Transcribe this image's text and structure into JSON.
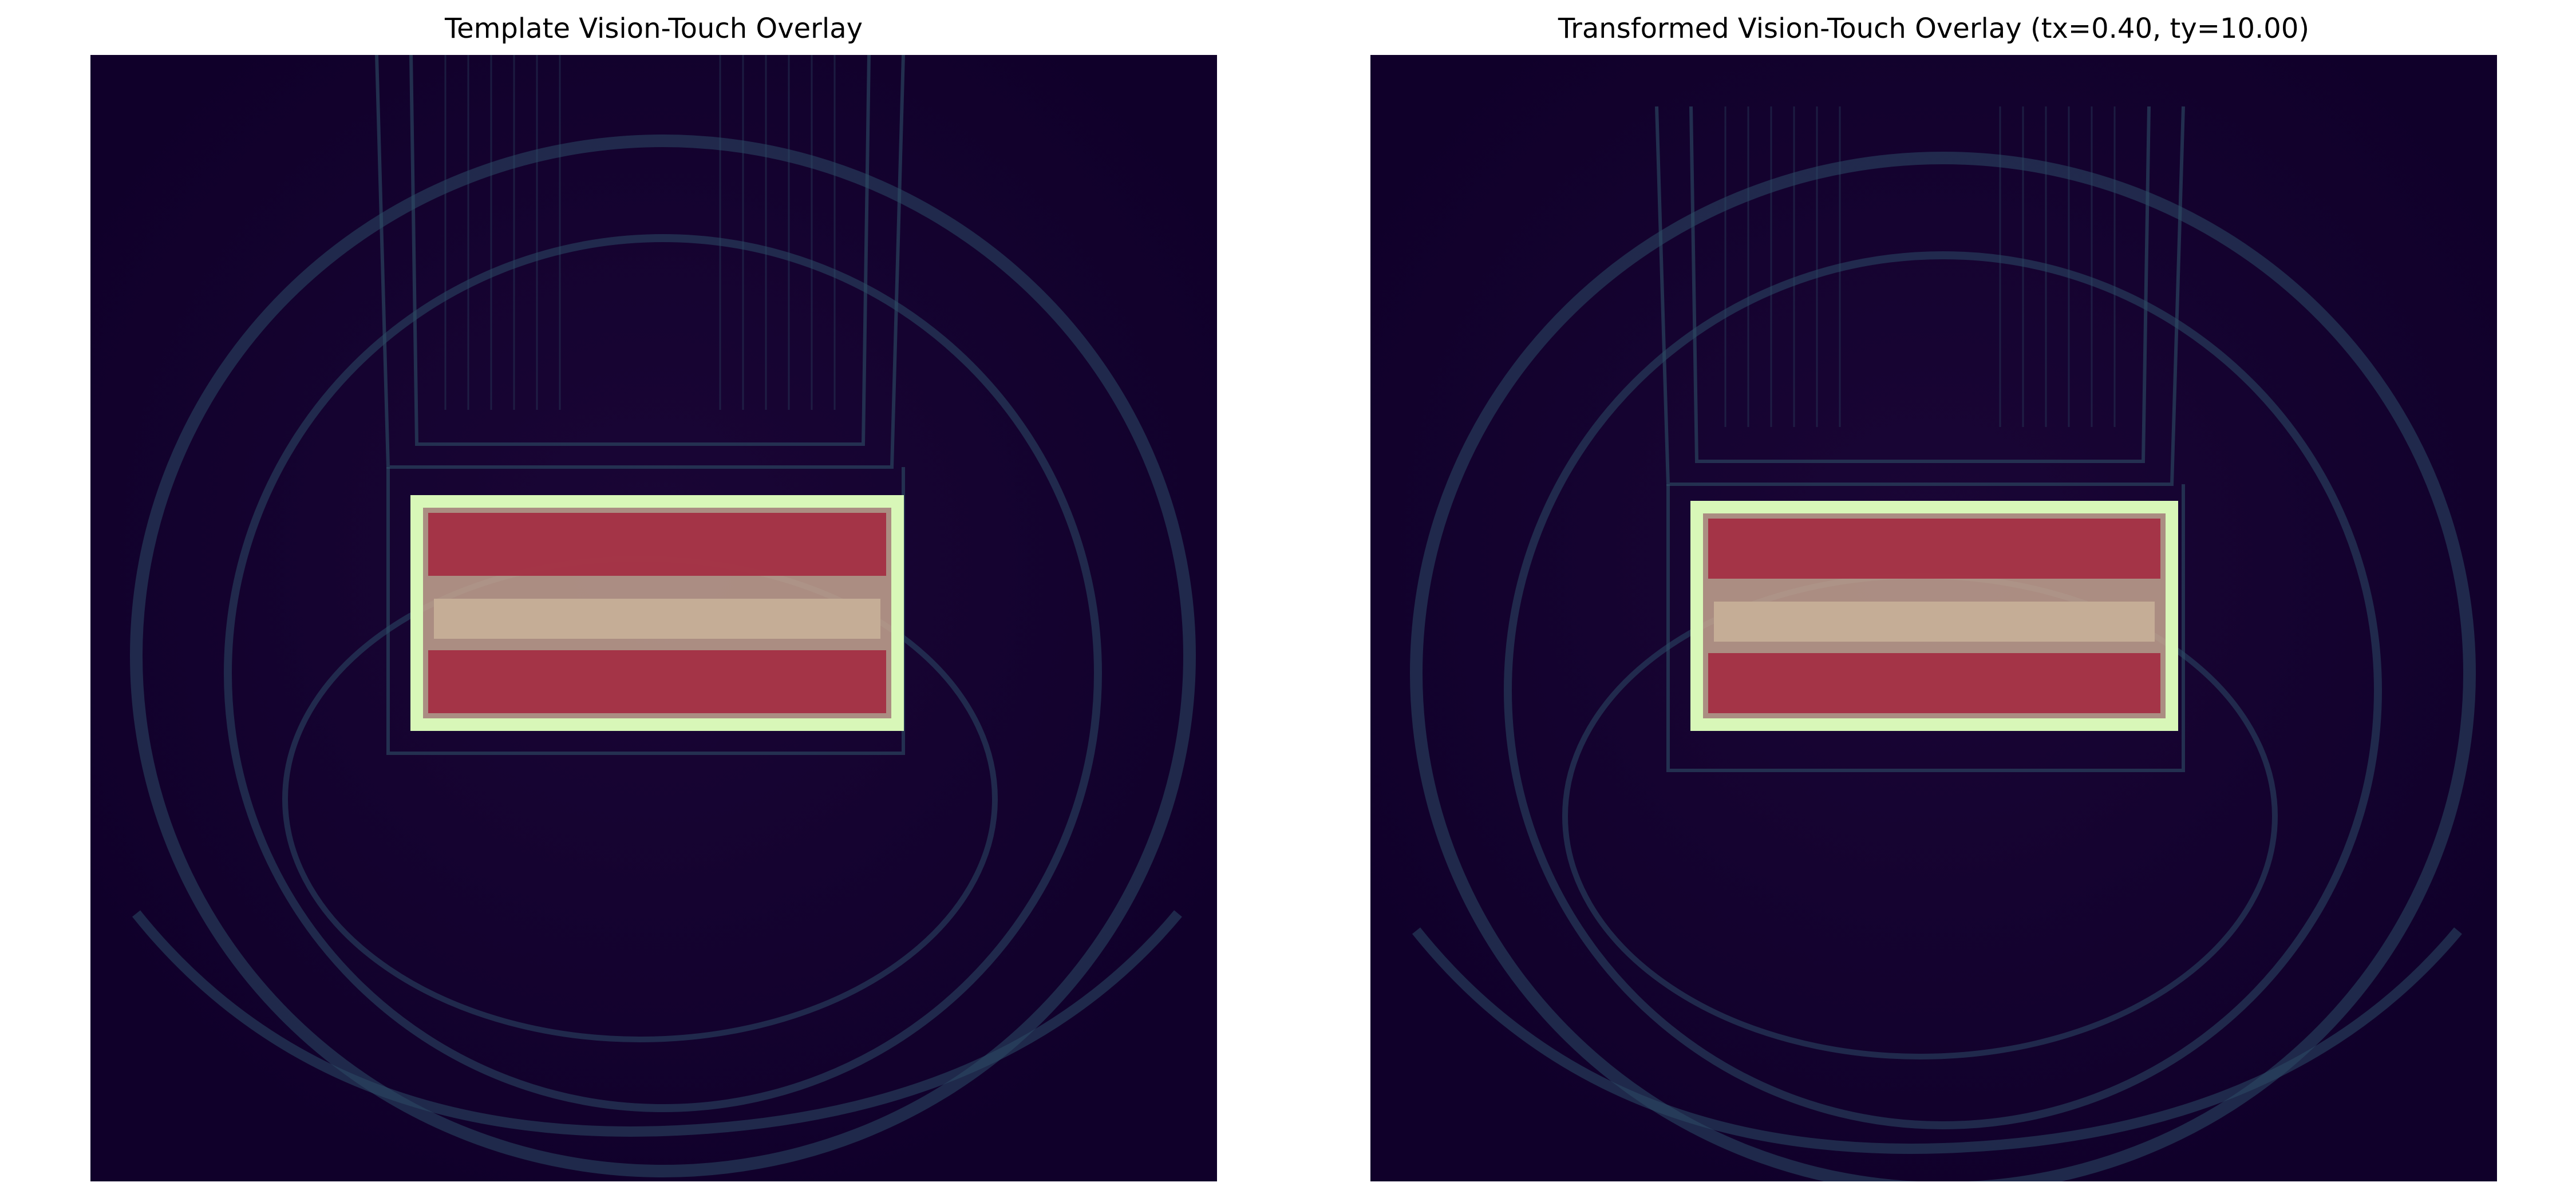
{
  "panels": [
    {
      "title": "Template Vision-Touch Overlay",
      "visual": "tactile-sensor-image-with-connector-overlay"
    },
    {
      "title": "Transformed Vision-Touch Overlay (tx=0.40, ty=10.00)",
      "visual": "tactile-sensor-image-with-connector-overlay-shifted"
    }
  ],
  "colors": {
    "background": "#12002b",
    "edges": "#2f4e6a",
    "edge_bright": "#4fae7a",
    "overlay_pad": "#a3283f",
    "overlay_center": "#c6a690",
    "overlay_border": "#d8f7b8"
  }
}
